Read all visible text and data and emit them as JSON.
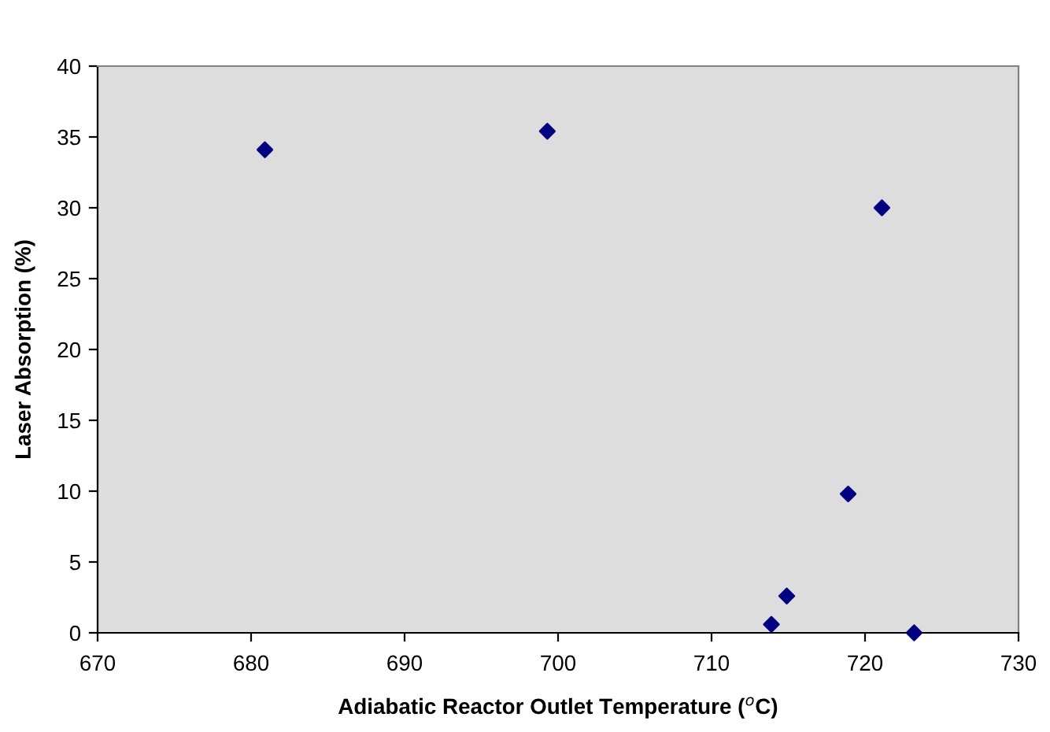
{
  "chart_data": {
    "type": "scatter",
    "xlabel": "Adiabatic Reactor Outlet Temperature ($^{o}$C)",
    "ylabel": "Laser Absorption (%)",
    "x": [
      680.9,
      699.3,
      721.1,
      718.9,
      714.9,
      713.9,
      723.2
    ],
    "series": [
      {
        "color": "#000080",
        "values": [
          34.1,
          35.4,
          30.0,
          9.8,
          2.6,
          0.6,
          0.0
        ]
      }
    ],
    "xlim": [
      670,
      730
    ],
    "xticks": [
      670,
      680,
      690,
      700,
      710,
      720,
      730
    ],
    "ylim": [
      0,
      40
    ],
    "yticks": [
      0,
      5,
      10,
      15,
      20,
      25,
      30,
      35,
      40
    ],
    "grid": false,
    "marker": "diamond"
  }
}
